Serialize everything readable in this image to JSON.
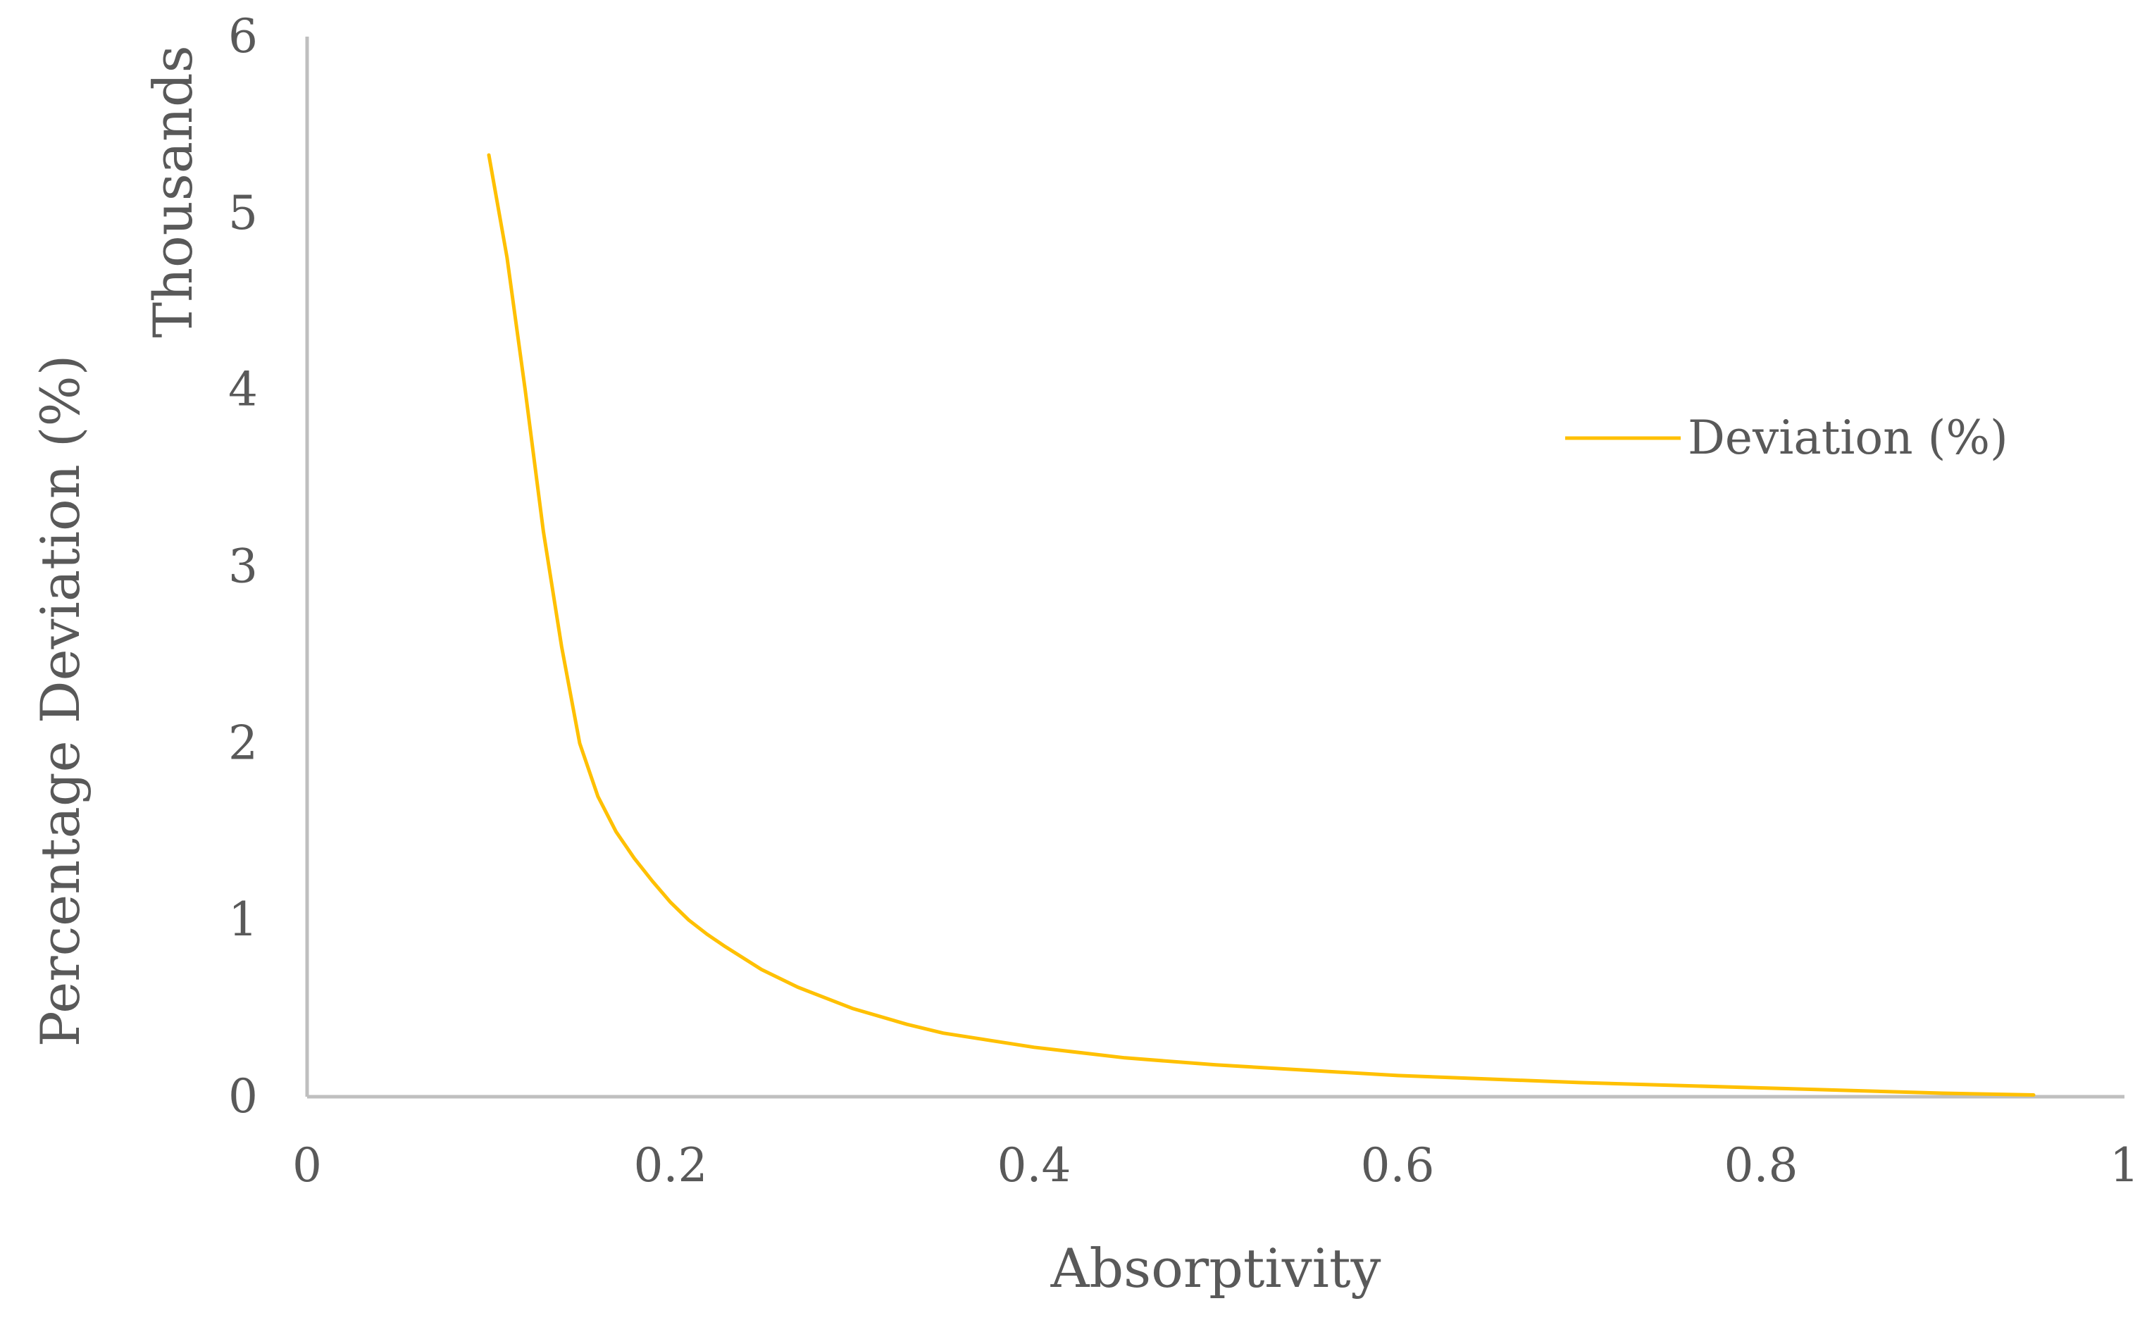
{
  "chart_data": {
    "type": "line",
    "title": "",
    "xlabel": "Absorptivity",
    "ylabel": "Percentage Deviation (%)",
    "y_display_units": "Thousands",
    "xlim": [
      0,
      1
    ],
    "ylim": [
      0,
      6
    ],
    "x_ticks": [
      "0",
      "0.2",
      "0.4",
      "0.6",
      "0.8",
      "1"
    ],
    "y_ticks": [
      "0",
      "1",
      "2",
      "3",
      "4",
      "5",
      "6"
    ],
    "grid": false,
    "legend_position": "right",
    "series": [
      {
        "name": "Deviation (%)",
        "color": "#FFC000",
        "x": [
          0.1,
          0.11,
          0.12,
          0.13,
          0.14,
          0.15,
          0.16,
          0.17,
          0.18,
          0.19,
          0.2,
          0.21,
          0.22,
          0.23,
          0.25,
          0.27,
          0.3,
          0.33,
          0.35,
          0.4,
          0.45,
          0.5,
          0.55,
          0.6,
          0.65,
          0.7,
          0.75,
          0.8,
          0.85,
          0.9,
          0.95
        ],
        "y": [
          5.33,
          4.75,
          4.0,
          3.2,
          2.55,
          2.0,
          1.7,
          1.5,
          1.35,
          1.22,
          1.1,
          1.0,
          0.92,
          0.85,
          0.72,
          0.62,
          0.5,
          0.41,
          0.36,
          0.28,
          0.22,
          0.18,
          0.15,
          0.12,
          0.1,
          0.08,
          0.065,
          0.05,
          0.035,
          0.02,
          0.01
        ]
      }
    ]
  }
}
